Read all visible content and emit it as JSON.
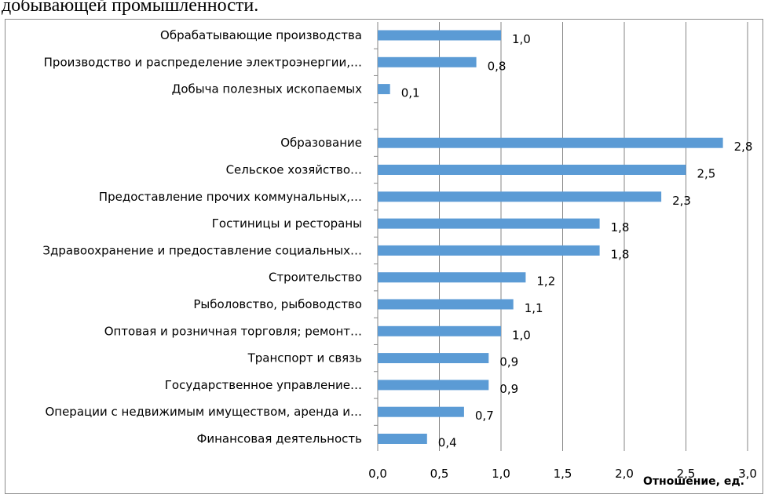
{
  "page": {
    "heading": "добывающей промышленности."
  },
  "chart_data": {
    "type": "bar",
    "orientation": "horizontal",
    "title": "",
    "xlabel": "Отношение, ед.",
    "ylabel": "",
    "xlim": [
      0,
      3.0
    ],
    "xticks": [
      "0,0",
      "0,5",
      "1,0",
      "1,5",
      "2,0",
      "2,5",
      "3,0"
    ],
    "grid": true,
    "bar_color": "#5b9bd5",
    "categories": [
      "Обрабатывающие производства",
      "Производство и распределение электроэнергии,…",
      "Добыча полезных ископаемых",
      "",
      "Образование",
      "Сельское хозяйство…",
      "Предоставление прочих коммунальных,…",
      "Гостиницы и рестораны",
      "Здравоохранение и предоставление социальных…",
      "Строительство",
      "Рыболовство, рыбоводство",
      "Оптовая и розничная торговля; ремонт…",
      "Транспорт и связь",
      "Государственное управление…",
      "Операции с недвижимым имуществом, аренда и…",
      "Финансовая деятельность"
    ],
    "values": [
      1.0,
      0.8,
      0.1,
      null,
      2.8,
      2.5,
      2.3,
      1.8,
      1.8,
      1.2,
      1.1,
      1.0,
      0.9,
      0.9,
      0.7,
      0.4
    ],
    "data_labels": [
      "1,0",
      "0,8",
      "0,1",
      "",
      "2,8",
      "2,5",
      "2,3",
      "1,8",
      "1,8",
      "1,2",
      "1,1",
      "1,0",
      "0,9",
      "0,9",
      "0,7",
      "0,4"
    ]
  }
}
